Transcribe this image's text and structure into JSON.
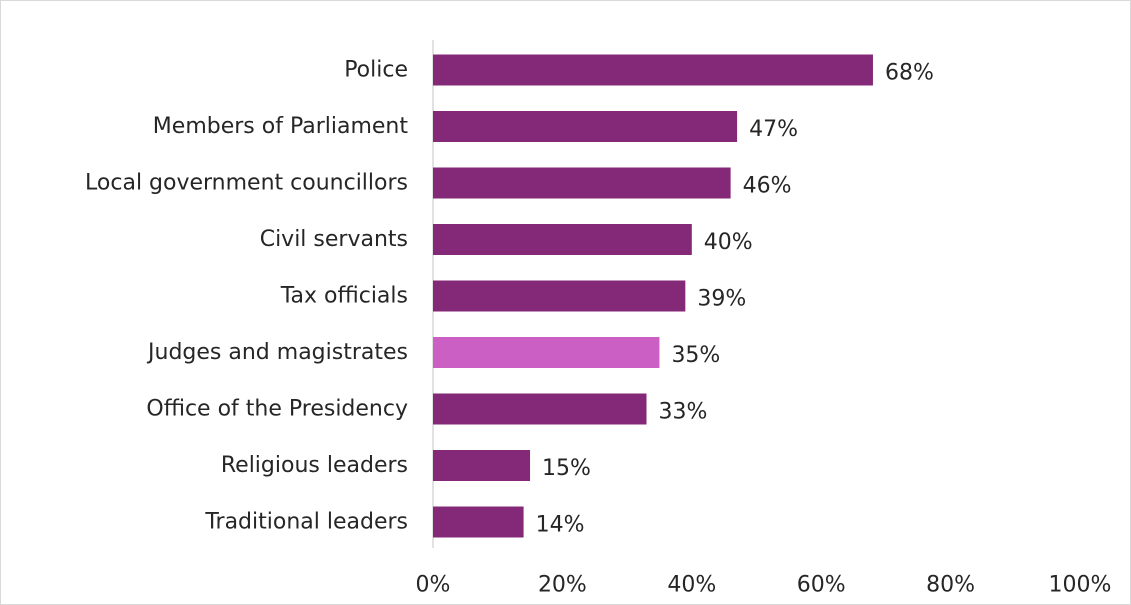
{
  "chart_data": {
    "type": "bar",
    "orientation": "horizontal",
    "categories": [
      "Police",
      "Members of Parliament",
      "Local government councillors",
      "Civil servants",
      "Tax officials",
      "Judges and magistrates",
      "Office of the Presidency",
      "Religious leaders",
      "Traditional leaders"
    ],
    "values": [
      68,
      47,
      46,
      40,
      39,
      35,
      33,
      15,
      14
    ],
    "value_labels": [
      "68%",
      "47%",
      "46%",
      "40%",
      "39%",
      "35%",
      "33%",
      "15%",
      "14%"
    ],
    "highlighted_category": "Judges and magistrates",
    "x_ticks": [
      0,
      20,
      40,
      60,
      80,
      100
    ],
    "x_tick_labels": [
      "0%",
      "20%",
      "40%",
      "60%",
      "80%",
      "100%"
    ],
    "xlim": [
      0,
      100
    ],
    "grid": false,
    "legend": "none",
    "colors": {
      "bar": "#842878",
      "highlight": "#cc5fc3",
      "axis": "#d9d9d9",
      "text": "#262626",
      "border": "#d9d9d9"
    }
  }
}
